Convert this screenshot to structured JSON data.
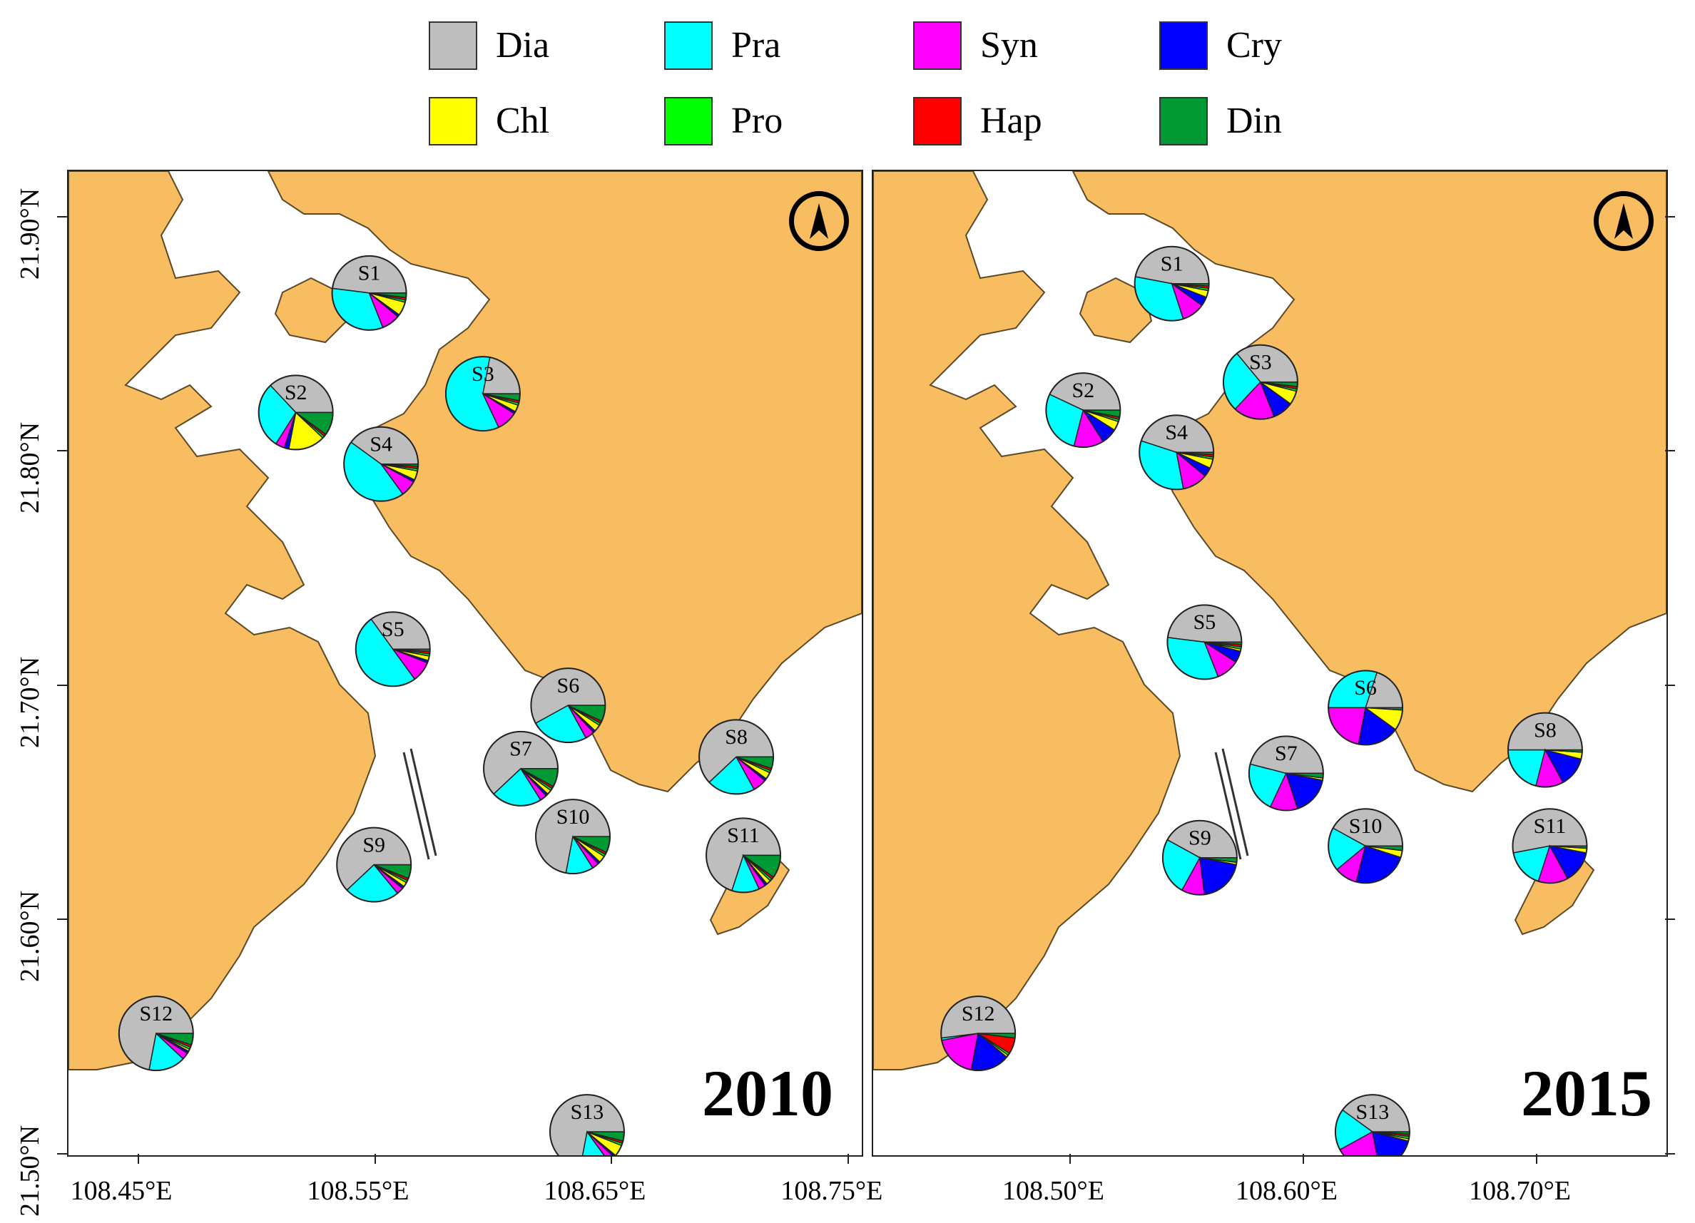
{
  "legend": [
    {
      "key": "dia",
      "label": "Dia",
      "color": "#bebebe"
    },
    {
      "key": "pra",
      "label": "Pra",
      "color": "#00ffff"
    },
    {
      "key": "syn",
      "label": "Syn",
      "color": "#ff00ff"
    },
    {
      "key": "cry",
      "label": "Cry",
      "color": "#0000ff"
    },
    {
      "key": "chl",
      "label": "Chl",
      "color": "#ffff00"
    },
    {
      "key": "pro",
      "label": "Pro",
      "color": "#00ff00"
    },
    {
      "key": "hap",
      "label": "Hap",
      "color": "#ff0000"
    },
    {
      "key": "din",
      "label": "Din",
      "color": "#009933"
    }
  ],
  "colors": {
    "land": "#f8bd60",
    "water": "#ffffff"
  },
  "panels": [
    {
      "year": "2010",
      "extent": {
        "lon": [
          108.42,
          108.755
        ],
        "lat": [
          21.5,
          21.92
        ]
      },
      "lon_ticks": [
        {
          "v": 108.45,
          "label": "108.45°E"
        },
        {
          "v": 108.55,
          "label": "108.55°E"
        },
        {
          "v": 108.65,
          "label": "108.65°E"
        },
        {
          "v": 108.75,
          "label": "108.75°E"
        }
      ],
      "lat_ticks": [
        {
          "v": 21.5,
          "label": "21.50°N"
        },
        {
          "v": 21.6,
          "label": "21.60°N"
        },
        {
          "v": 21.7,
          "label": "21.70°N"
        },
        {
          "v": 21.8,
          "label": "21.80°N"
        },
        {
          "v": 21.9,
          "label": "21.90°N"
        }
      ],
      "stations": [
        {
          "id": "S1",
          "lon": 108.547,
          "lat": 21.868,
          "composition": {
            "dia": 48,
            "pra": 33,
            "syn": 8,
            "cry": 1,
            "chl": 6,
            "pro": 1,
            "hap": 1,
            "din": 2
          }
        },
        {
          "id": "S2",
          "lon": 108.516,
          "lat": 21.817,
          "composition": {
            "dia": 37,
            "pra": 29,
            "syn": 4,
            "cry": 2,
            "chl": 16,
            "pro": 1,
            "hap": 1,
            "din": 10
          }
        },
        {
          "id": "S3",
          "lon": 108.595,
          "lat": 21.825,
          "composition": {
            "dia": 22,
            "pra": 60,
            "syn": 9,
            "cry": 1,
            "chl": 3,
            "pro": 1,
            "hap": 1,
            "din": 3
          }
        },
        {
          "id": "S4",
          "lon": 108.552,
          "lat": 21.795,
          "composition": {
            "dia": 40,
            "pra": 45,
            "syn": 7,
            "cry": 1,
            "chl": 4,
            "pro": 1,
            "hap": 1,
            "din": 1
          }
        },
        {
          "id": "S5",
          "lon": 108.557,
          "lat": 21.716,
          "composition": {
            "dia": 35,
            "pra": 50,
            "syn": 9,
            "cry": 1,
            "chl": 2,
            "pro": 1,
            "hap": 1,
            "din": 1
          }
        },
        {
          "id": "S6",
          "lon": 108.631,
          "lat": 21.692,
          "composition": {
            "dia": 58,
            "pra": 25,
            "syn": 4,
            "cry": 1,
            "chl": 3,
            "pro": 1,
            "hap": 1,
            "din": 7
          }
        },
        {
          "id": "S7",
          "lon": 108.611,
          "lat": 21.665,
          "composition": {
            "dia": 62,
            "pra": 22,
            "syn": 3,
            "cry": 1,
            "chl": 2,
            "pro": 1,
            "hap": 1,
            "din": 8
          }
        },
        {
          "id": "S8",
          "lon": 108.702,
          "lat": 21.67,
          "composition": {
            "dia": 62,
            "pra": 21,
            "syn": 6,
            "cry": 1,
            "chl": 3,
            "pro": 1,
            "hap": 1,
            "din": 5
          }
        },
        {
          "id": "S9",
          "lon": 108.549,
          "lat": 21.624,
          "composition": {
            "dia": 62,
            "pra": 24,
            "syn": 3,
            "cry": 1,
            "chl": 2,
            "pro": 1,
            "hap": 1,
            "din": 6
          }
        },
        {
          "id": "S10",
          "lon": 108.633,
          "lat": 21.636,
          "composition": {
            "dia": 72,
            "pra": 12,
            "syn": 3,
            "cry": 1,
            "chl": 3,
            "pro": 1,
            "hap": 1,
            "din": 7
          }
        },
        {
          "id": "S11",
          "lon": 108.705,
          "lat": 21.628,
          "composition": {
            "dia": 70,
            "pra": 12,
            "syn": 3,
            "cry": 1,
            "chl": 2,
            "pro": 1,
            "hap": 1,
            "din": 10
          }
        },
        {
          "id": "S12",
          "lon": 108.457,
          "lat": 21.552,
          "composition": {
            "dia": 72,
            "pra": 16,
            "syn": 3,
            "cry": 1,
            "chl": 1,
            "pro": 1,
            "hap": 1,
            "din": 5
          }
        },
        {
          "id": "S13",
          "lon": 108.639,
          "lat": 21.51,
          "composition": {
            "dia": 72,
            "pra": 13,
            "syn": 3,
            "cry": 1,
            "chl": 5,
            "pro": 1,
            "hap": 1,
            "din": 4
          }
        }
      ]
    },
    {
      "year": "2015",
      "extent": {
        "lon": [
          108.415,
          108.755
        ],
        "lat": [
          21.5,
          21.92
        ]
      },
      "lon_ticks": [
        {
          "v": 108.5,
          "label": "108.50°E"
        },
        {
          "v": 108.6,
          "label": "108.60°E"
        },
        {
          "v": 108.7,
          "label": "108.70°E"
        }
      ],
      "lat_ticks": [
        {
          "v": 21.5,
          "label": ""
        },
        {
          "v": 21.6,
          "label": ""
        },
        {
          "v": 21.7,
          "label": ""
        },
        {
          "v": 21.8,
          "label": ""
        },
        {
          "v": 21.9,
          "label": ""
        }
      ],
      "stations": [
        {
          "id": "S1",
          "lon": 108.543,
          "lat": 21.872,
          "composition": {
            "dia": 47,
            "pra": 33,
            "syn": 10,
            "cry": 4,
            "chl": 3,
            "pro": 1,
            "hap": 1,
            "din": 1
          }
        },
        {
          "id": "S2",
          "lon": 108.505,
          "lat": 21.818,
          "composition": {
            "dia": 43,
            "pra": 28,
            "syn": 13,
            "cry": 7,
            "chl": 4,
            "pro": 1,
            "hap": 1,
            "din": 3
          }
        },
        {
          "id": "S3",
          "lon": 108.581,
          "lat": 21.83,
          "composition": {
            "dia": 36,
            "pra": 27,
            "syn": 18,
            "cry": 9,
            "chl": 6,
            "pro": 1,
            "hap": 1,
            "din": 2
          }
        },
        {
          "id": "S4",
          "lon": 108.545,
          "lat": 21.8,
          "composition": {
            "dia": 45,
            "pra": 33,
            "syn": 11,
            "cry": 4,
            "chl": 4,
            "pro": 1,
            "hap": 1,
            "din": 1
          }
        },
        {
          "id": "S5",
          "lon": 108.557,
          "lat": 21.719,
          "composition": {
            "dia": 48,
            "pra": 33,
            "syn": 10,
            "cry": 5,
            "chl": 1,
            "pro": 1,
            "hap": 1,
            "din": 1
          }
        },
        {
          "id": "S6",
          "lon": 108.626,
          "lat": 21.691,
          "composition": {
            "dia": 20,
            "pra": 30,
            "syn": 22,
            "cry": 18,
            "chl": 9,
            "pro": 0,
            "hap": 0,
            "din": 1
          }
        },
        {
          "id": "S7",
          "lon": 108.592,
          "lat": 21.663,
          "composition": {
            "dia": 46,
            "pra": 22,
            "syn": 12,
            "cry": 17,
            "chl": 1,
            "pro": 0,
            "hap": 0,
            "din": 2
          }
        },
        {
          "id": "S8",
          "lon": 108.703,
          "lat": 21.673,
          "composition": {
            "dia": 50,
            "pra": 21,
            "syn": 12,
            "cry": 13,
            "chl": 3,
            "pro": 0,
            "hap": 0,
            "din": 1
          }
        },
        {
          "id": "S9",
          "lon": 108.555,
          "lat": 21.627,
          "composition": {
            "dia": 42,
            "pra": 25,
            "syn": 10,
            "cry": 20,
            "chl": 1,
            "pro": 0,
            "hap": 0,
            "din": 2
          }
        },
        {
          "id": "S10",
          "lon": 108.626,
          "lat": 21.632,
          "composition": {
            "dia": 42,
            "pra": 19,
            "syn": 10,
            "cry": 24,
            "chl": 3,
            "pro": 0,
            "hap": 0,
            "din": 2
          }
        },
        {
          "id": "S11",
          "lon": 108.705,
          "lat": 21.632,
          "composition": {
            "dia": 53,
            "pra": 17,
            "syn": 13,
            "cry": 14,
            "chl": 2,
            "pro": 0,
            "hap": 0,
            "din": 1
          }
        },
        {
          "id": "S12",
          "lon": 108.46,
          "lat": 21.552,
          "composition": {
            "dia": 52,
            "pra": 1,
            "syn": 19,
            "cry": 17,
            "chl": 1,
            "pro": 1,
            "hap": 7,
            "din": 2
          }
        },
        {
          "id": "S13",
          "lon": 108.629,
          "lat": 21.51,
          "composition": {
            "dia": 40,
            "pra": 18,
            "syn": 20,
            "cry": 18,
            "chl": 1,
            "pro": 1,
            "hap": 1,
            "din": 1
          }
        }
      ]
    }
  ]
}
